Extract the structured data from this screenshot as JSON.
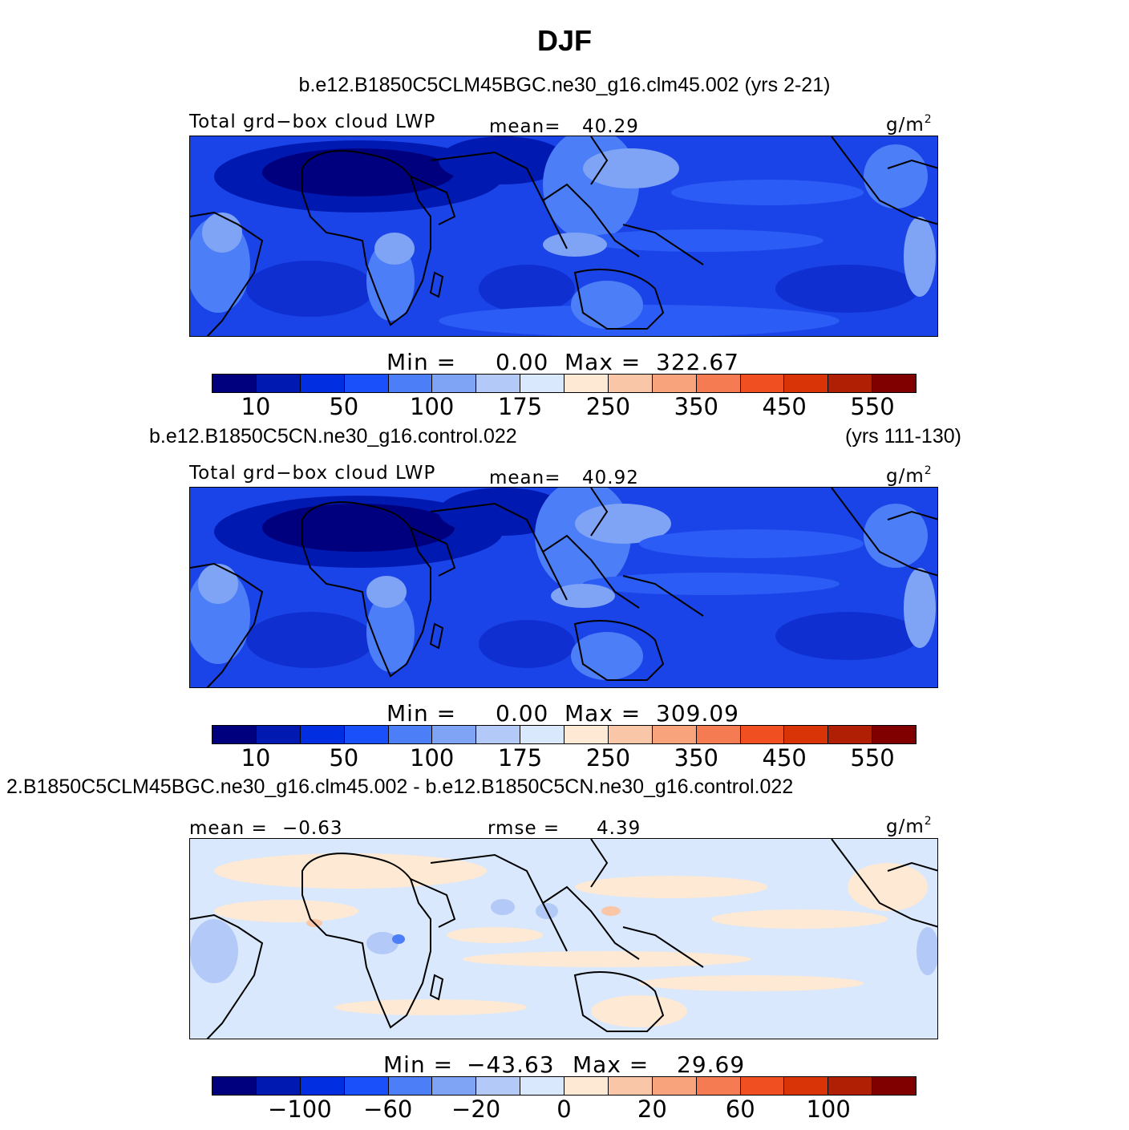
{
  "title": "DJF",
  "colors": [
    "#00007f",
    "#0019b0",
    "#002ee0",
    "#1a50fa",
    "#4c7ef7",
    "#7fa3f5",
    "#b3c9f7",
    "#d9e8fc",
    "#fde9d4",
    "#f9c6a8",
    "#f8a37c",
    "#f57c52",
    "#f04f22",
    "#d93408",
    "#b01e04",
    "#800000"
  ],
  "land_color_note": "",
  "chart_data": [
    {
      "type": "heatmap",
      "panel_title": "b.e12.B1850C5CLM45BGC.ne30_g16.clm45.002 (yrs 2-21)",
      "variable": "Total grd−box cloud LWP",
      "stat_label": "mean=",
      "stat_value": "40.29",
      "units": "g/m",
      "units_exp": "2",
      "min_label": "Min  =",
      "min_value": "0.00",
      "max_label": "Max  =",
      "max_value": "322.67",
      "colorbar_ticks": [
        "10",
        "50",
        "100",
        "175",
        "250",
        "350",
        "450",
        "550"
      ],
      "colorbar_levels": [
        5,
        10,
        25,
        50,
        75,
        100,
        150,
        175,
        200,
        250,
        300,
        350,
        400,
        450,
        500,
        550,
        600
      ],
      "mean": 40.29,
      "min": 0.0,
      "max": 322.67
    },
    {
      "type": "heatmap",
      "panel_title_left": "b.e12.B1850C5CN.ne30_g16.control.022",
      "panel_title_right": "(yrs 111-130)",
      "variable": "Total grd−box cloud LWP",
      "stat_label": "mean=",
      "stat_value": "40.92",
      "units": "g/m",
      "units_exp": "2",
      "min_label": "Min  =",
      "min_value": "0.00",
      "max_label": "Max  =",
      "max_value": "309.09",
      "colorbar_ticks": [
        "10",
        "50",
        "100",
        "175",
        "250",
        "350",
        "450",
        "550"
      ],
      "mean": 40.92,
      "min": 0.0,
      "max": 309.09
    },
    {
      "type": "heatmap",
      "panel_title": "2.B1850C5CLM45BGC.ne30_g16.clm45.002 - b.e12.B1850C5CN.ne30_g16.control.022",
      "mean_label": "mean  =",
      "mean_value": "−0.63",
      "rmse_label": "rmse  =",
      "rmse_value": "4.39",
      "units": "g/m",
      "units_exp": "2",
      "min_label": "Min  =",
      "min_value": "−43.63",
      "max_label": "Max  =",
      "max_value": "29.69",
      "colorbar_ticks": [
        "−100",
        "−60",
        "−20",
        "0",
        "20",
        "60",
        "100"
      ],
      "mean": -0.63,
      "rmse": 4.39,
      "min": -43.63,
      "max": 29.69
    }
  ]
}
